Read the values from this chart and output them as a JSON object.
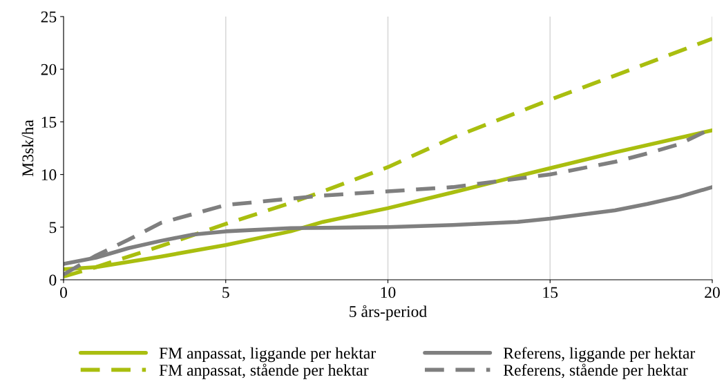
{
  "chart_data": {
    "type": "line",
    "xlabel": "5 års-period",
    "ylabel": "M3sk/ha",
    "xlim": [
      0,
      20
    ],
    "xticks": [
      0,
      5,
      10,
      15,
      20
    ],
    "ylim": [
      0,
      25
    ],
    "yticks": [
      0,
      5,
      10,
      15,
      20,
      25
    ],
    "grid": "x",
    "legend": "bottom",
    "series": [
      {
        "name": "FM anpassat, liggande per hektar",
        "color": "#a9be0f",
        "line_style": "solid",
        "x": [
          0,
          1,
          3,
          5,
          7,
          8,
          10,
          12,
          15,
          17,
          20
        ],
        "values": [
          1.0,
          1.2,
          2.2,
          3.3,
          4.6,
          5.5,
          6.8,
          8.3,
          10.6,
          12.1,
          14.2
        ]
      },
      {
        "name": "FM anpassat, stående per hektar",
        "color": "#a9be0f",
        "line_style": "dashed",
        "x": [
          0,
          1,
          3,
          5,
          7,
          8,
          10,
          12,
          15,
          17,
          20
        ],
        "values": [
          0.3,
          1.2,
          3.2,
          5.3,
          7.3,
          8.4,
          10.7,
          13.5,
          17.1,
          19.4,
          22.9
        ]
      },
      {
        "name": "Referens, liggande per hektar",
        "color": "#7f7f7f",
        "line_style": "solid",
        "x": [
          0,
          1,
          2,
          3,
          4,
          5,
          7,
          10,
          12,
          14,
          15,
          16,
          17,
          18,
          19,
          20
        ],
        "values": [
          1.5,
          2.1,
          3.0,
          3.7,
          4.3,
          4.6,
          4.9,
          5.0,
          5.2,
          5.5,
          5.8,
          6.2,
          6.6,
          7.2,
          7.9,
          8.8
        ]
      },
      {
        "name": "Referens, stående per hektar",
        "color": "#7f7f7f",
        "line_style": "dashed",
        "x": [
          0,
          1,
          2,
          3,
          5,
          7,
          8,
          10,
          12,
          13,
          15,
          17,
          18,
          19,
          20
        ],
        "values": [
          0.5,
          2.3,
          3.8,
          5.4,
          7.1,
          7.7,
          8.0,
          8.4,
          8.8,
          9.2,
          10.0,
          11.2,
          12.0,
          12.9,
          14.4
        ]
      }
    ]
  }
}
